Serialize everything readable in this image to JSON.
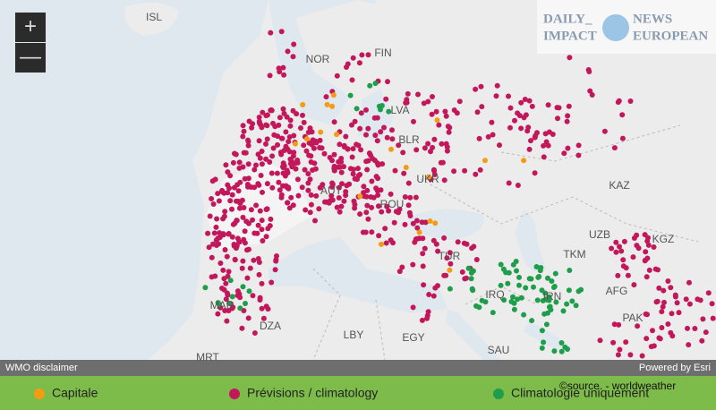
{
  "zoom": {
    "in": "+",
    "out": "—"
  },
  "watermark": {
    "left": [
      "DAILY_",
      "IMPACT"
    ],
    "right": [
      "NEWS",
      "EUROPEAN"
    ]
  },
  "country_labels": [
    "ISL",
    "NOR",
    "FIN",
    "LVA",
    "BLR",
    "UKR",
    "ROU",
    "AUT",
    "KAZ",
    "UZB",
    "KGZ",
    "TKM",
    "AFG",
    "IRN",
    "IRQ",
    "TUR",
    "PAK",
    "SAU",
    "EGY",
    "LBY",
    "DZA",
    "MAR",
    "MRT"
  ],
  "attribution": {
    "left": "WMO disclaimer",
    "right": "Powered by Esri"
  },
  "legend": [
    {
      "label": "Capitale"
    },
    {
      "label": "Prévisions / climatology"
    },
    {
      "label": "Climatologie uniquement"
    }
  ],
  "source": "©source.  - worldweather"
}
